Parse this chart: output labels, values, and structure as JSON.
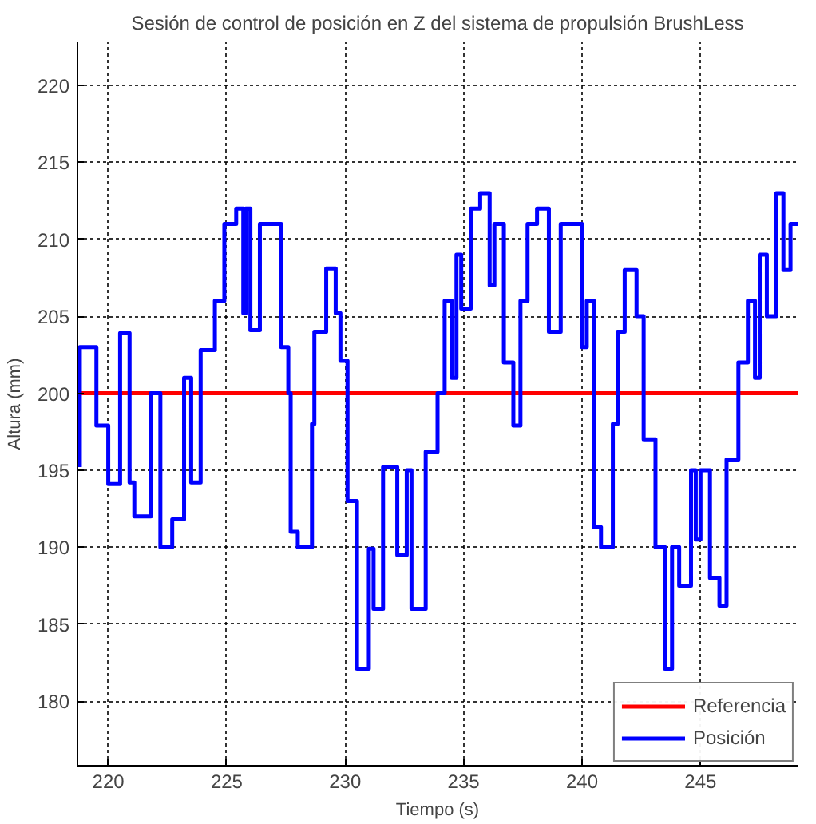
{
  "chart_data": {
    "type": "step",
    "title": "Sesión de control de posición en Z del sistema de propulsión BrushLess",
    "xlabel": "Tiempo (s)",
    "ylabel": "Altura (mm)",
    "xlim": [
      218.7,
      249.1
    ],
    "ylim": [
      175.8,
      222.8
    ],
    "xticks": [
      220,
      225,
      230,
      235,
      240,
      245
    ],
    "yticks": [
      180,
      185,
      190,
      195,
      200,
      205,
      210,
      215,
      220
    ],
    "grid": true,
    "legend": "bottom right",
    "line_style": "solid",
    "marker": "none",
    "series": [
      {
        "name": "Referencia",
        "type": "line",
        "color": "#ff0000",
        "x": [
          218.7,
          249.1
        ],
        "values": [
          200,
          200
        ]
      },
      {
        "name": "Posición",
        "color": "#0000ff",
        "x": [
          218.8,
          219.5,
          220,
          220.5,
          220.9,
          221.1,
          221.8,
          222.2,
          222.7,
          223.2,
          223.5,
          223.9,
          224.5,
          224.9,
          225.4,
          225.7,
          225.8,
          226,
          226.4,
          226.6,
          227.3,
          227.6,
          227.7,
          228,
          228.6,
          228.7,
          229.2,
          229.6,
          229.8,
          230.1,
          230.5,
          231,
          231.2,
          231.6,
          232.2,
          232.6,
          232.8,
          233.4,
          233.9,
          234.2,
          234.5,
          234.7,
          234.9,
          235.3,
          235.7,
          236.1,
          236.3,
          236.7,
          237.1,
          237.4,
          237.7,
          238.1,
          238.6,
          239.1,
          239.4,
          240,
          240.2,
          240.5,
          240.8,
          241.3,
          241.5,
          241.8,
          242.3,
          242.6,
          243.1,
          243.5,
          243.8,
          244.1,
          244.6,
          244.8,
          245,
          245.4,
          245.8,
          246.1,
          246.6,
          247,
          247.3,
          247.5,
          247.8,
          248.2,
          248.5,
          248.8,
          249.1
        ],
        "values": [
          195.2,
          203,
          197.9,
          194.1,
          203.9,
          194.2,
          192,
          200,
          190,
          191.8,
          201,
          194.2,
          202.8,
          206,
          211,
          212,
          205.2,
          212,
          204.1,
          211,
          211,
          203,
          200,
          191,
          190,
          198,
          204,
          208.1,
          205.2,
          202.1,
          193,
          182.1,
          189.9,
          186,
          195.2,
          189.5,
          195,
          186,
          196.2,
          200,
          206,
          201,
          209,
          205.5,
          212,
          213,
          207,
          211,
          202,
          197.9,
          206,
          211,
          212,
          204,
          211,
          211,
          203,
          206,
          191.3,
          190,
          198,
          204,
          208,
          205,
          197,
          190,
          182.1,
          190,
          187.5,
          195,
          190.5,
          195,
          188,
          186.2,
          195.7,
          202,
          206,
          201,
          209,
          205,
          213,
          208,
          211
        ]
      }
    ]
  }
}
